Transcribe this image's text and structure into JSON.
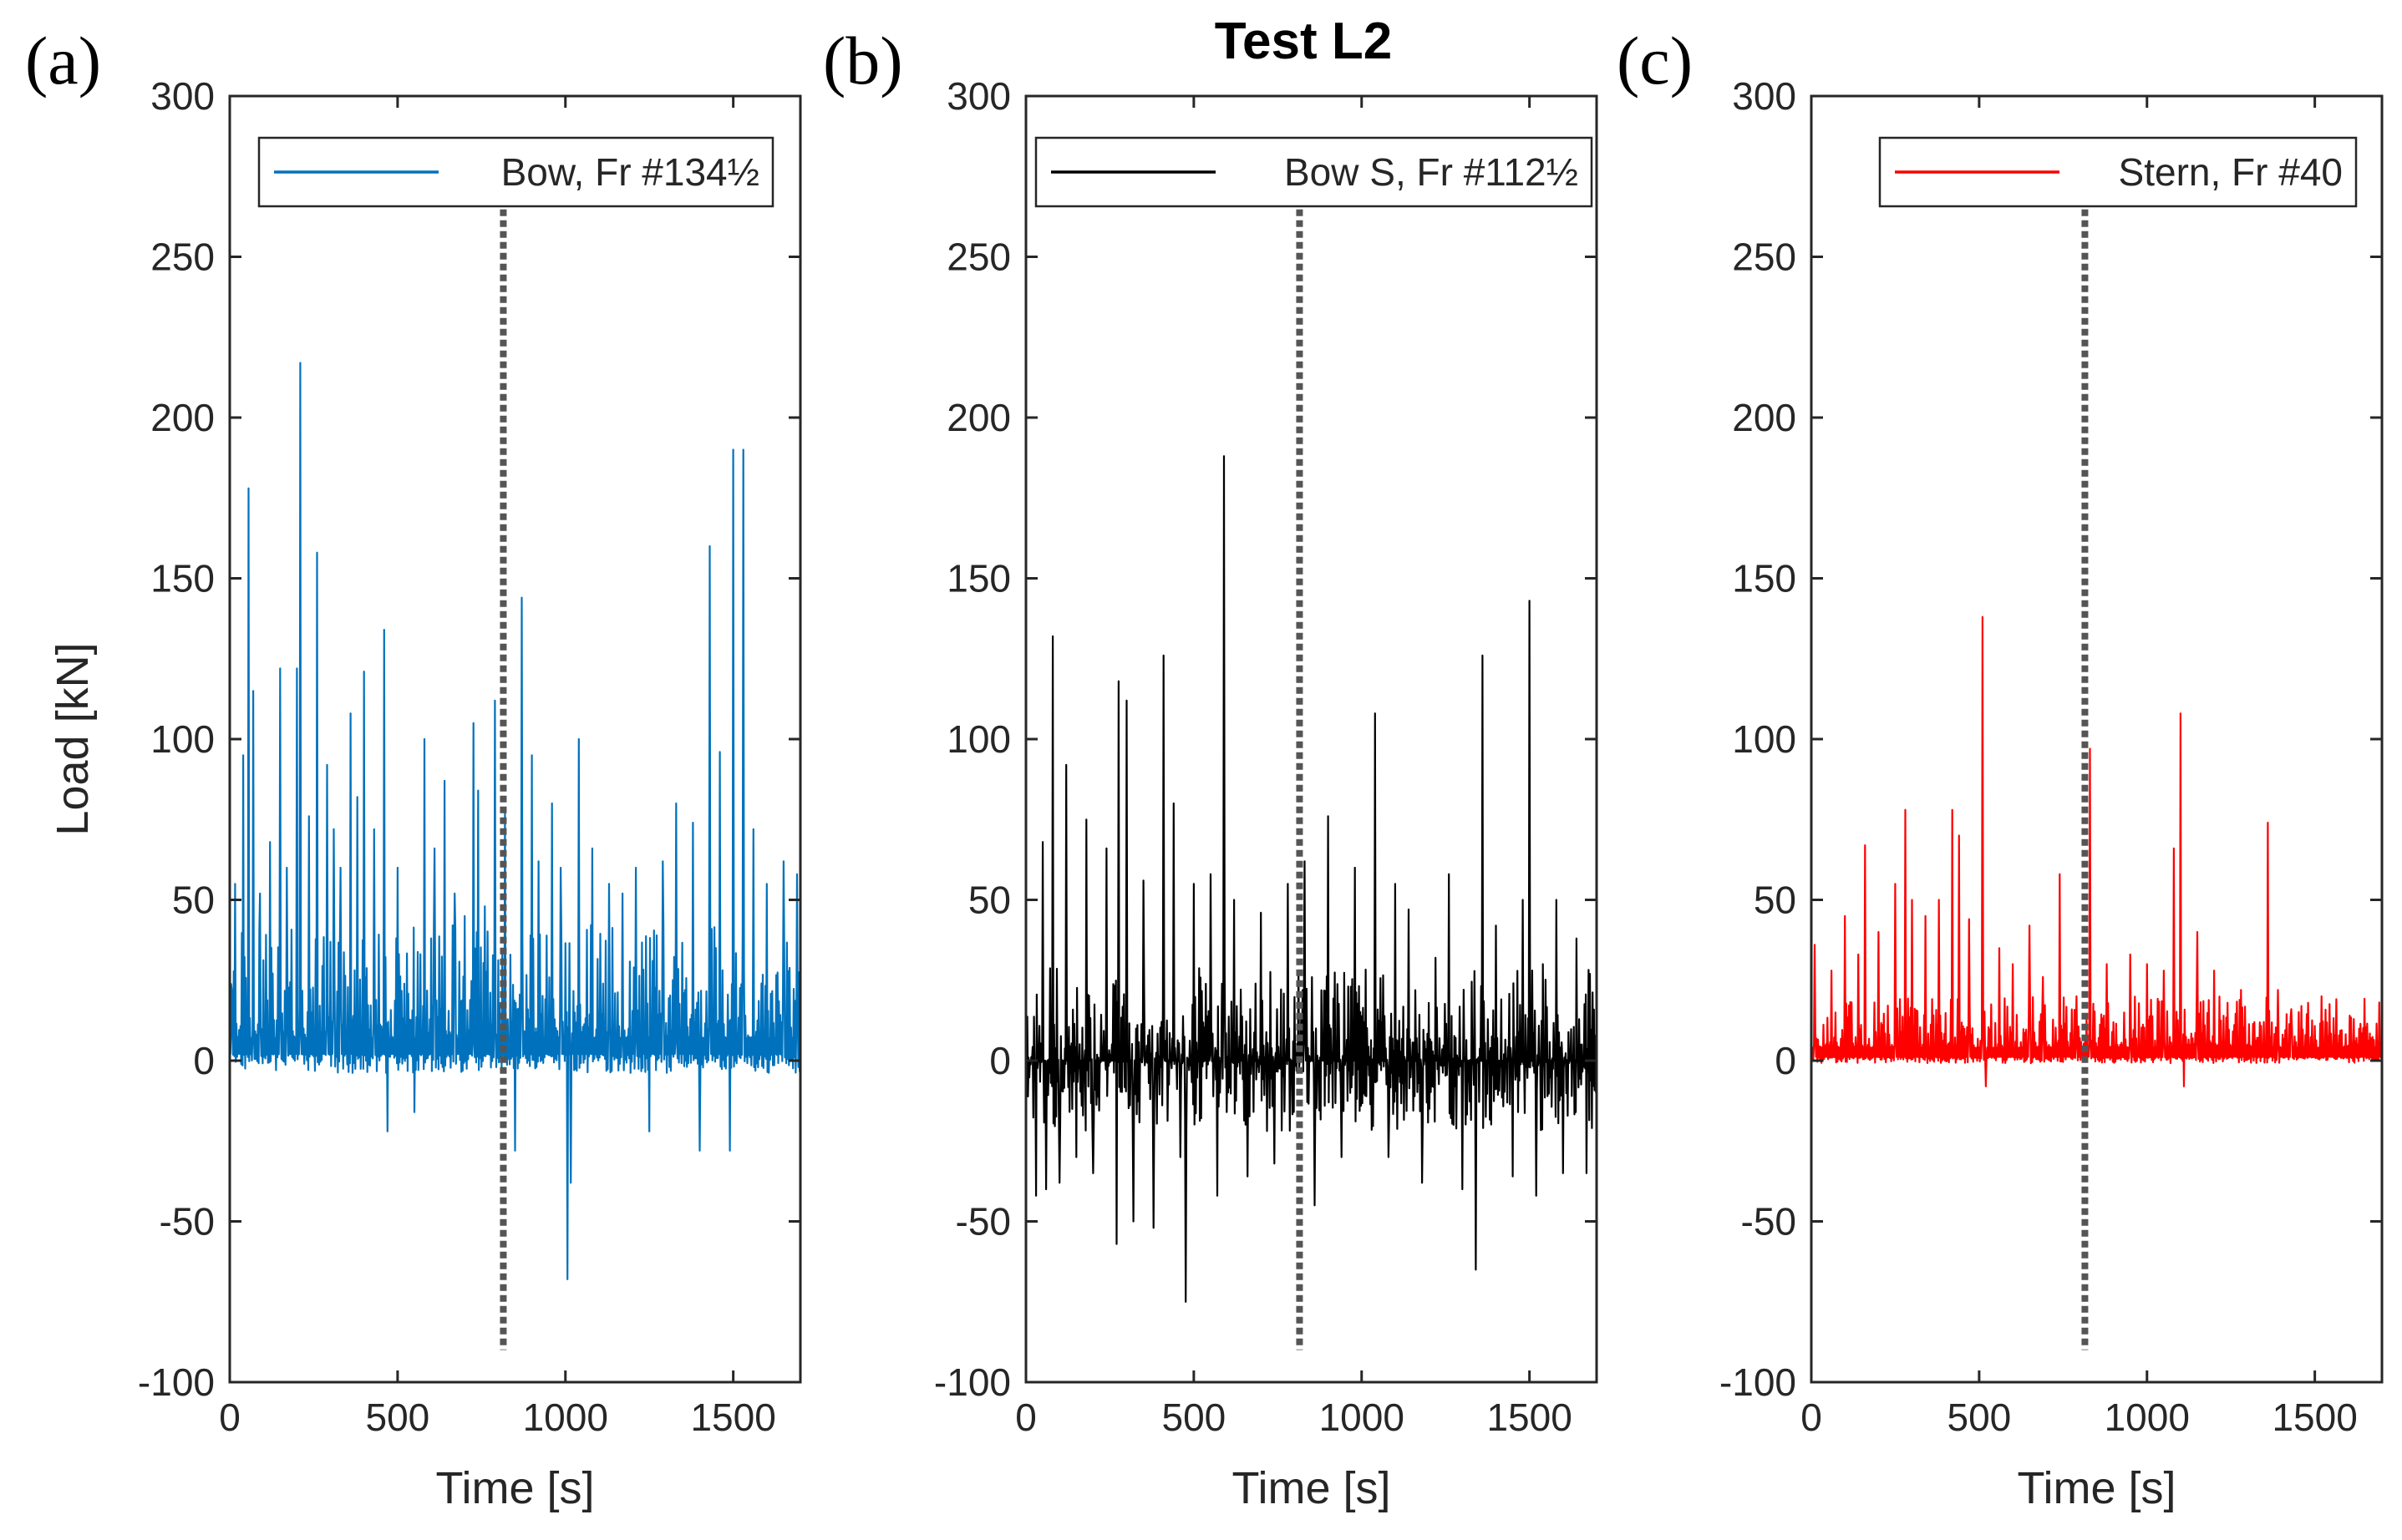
{
  "figure": {
    "title": "Test L2"
  },
  "chart_data": [
    {
      "type": "line",
      "panel_label": "(a)",
      "legend": "Bow, Fr #134½",
      "color": "#0072BD",
      "xlabel": "Time [s]",
      "ylabel": "Load [kN]",
      "xlim": [
        0,
        1700
      ],
      "ylim": [
        -100,
        300
      ],
      "xticks": [
        0,
        500,
        1000,
        1500
      ],
      "yticks": [
        -100,
        -50,
        0,
        50,
        100,
        150,
        200,
        250,
        300
      ],
      "vline_x": 815,
      "noise": {
        "base": 7,
        "amp": 22,
        "neg": 6,
        "seed": 11
      },
      "peaks": [
        [
          5,
          22
        ],
        [
          15,
          55
        ],
        [
          40,
          95
        ],
        [
          55,
          178
        ],
        [
          70,
          115
        ],
        [
          90,
          52
        ],
        [
          120,
          68
        ],
        [
          150,
          122
        ],
        [
          170,
          60
        ],
        [
          200,
          122
        ],
        [
          210,
          217
        ],
        [
          235,
          76
        ],
        [
          260,
          50
        ],
        [
          260,
          158
        ],
        [
          290,
          92
        ],
        [
          310,
          72
        ],
        [
          330,
          60
        ],
        [
          360,
          108
        ],
        [
          380,
          82
        ],
        [
          400,
          121
        ],
        [
          430,
          72
        ],
        [
          460,
          134
        ],
        [
          470,
          -22
        ],
        [
          500,
          60
        ],
        [
          550,
          -16
        ],
        [
          580,
          100
        ],
        [
          610,
          66
        ],
        [
          640,
          87
        ],
        [
          670,
          52
        ],
        [
          700,
          45
        ],
        [
          725,
          105
        ],
        [
          740,
          84
        ],
        [
          760,
          48
        ],
        [
          790,
          112
        ],
        [
          820,
          78
        ],
        [
          850,
          -28
        ],
        [
          870,
          144
        ],
        [
          900,
          95
        ],
        [
          920,
          62
        ],
        [
          960,
          80
        ],
        [
          985,
          60
        ],
        [
          1005,
          -68
        ],
        [
          1015,
          -38
        ],
        [
          1040,
          100
        ],
        [
          1080,
          66
        ],
        [
          1130,
          55
        ],
        [
          1170,
          52
        ],
        [
          1210,
          60
        ],
        [
          1250,
          -22
        ],
        [
          1290,
          62
        ],
        [
          1330,
          80
        ],
        [
          1380,
          74
        ],
        [
          1400,
          -28
        ],
        [
          1430,
          160
        ],
        [
          1460,
          96
        ],
        [
          1490,
          -28
        ],
        [
          1500,
          190
        ],
        [
          1530,
          190
        ],
        [
          1560,
          72
        ],
        [
          1600,
          55
        ],
        [
          1650,
          62
        ],
        [
          1690,
          58
        ]
      ]
    },
    {
      "type": "line",
      "panel_label": "(b)",
      "legend": "Bow S, Fr #112½",
      "color": "#000000",
      "xlabel": "Time [s]",
      "ylabel": "",
      "xlim": [
        0,
        1700
      ],
      "ylim": [
        -100,
        300
      ],
      "xticks": [
        0,
        500,
        1000,
        1500
      ],
      "yticks": [
        -100,
        -50,
        0,
        50,
        100,
        150,
        200,
        250,
        300
      ],
      "vline_x": 815,
      "noise": {
        "base": 0,
        "amp": 18,
        "neg": 22,
        "seed": 23
      },
      "peaks": [
        [
          30,
          -42
        ],
        [
          50,
          68
        ],
        [
          60,
          -40
        ],
        [
          80,
          132
        ],
        [
          100,
          -38
        ],
        [
          120,
          92
        ],
        [
          150,
          -30
        ],
        [
          180,
          75
        ],
        [
          200,
          -35
        ],
        [
          240,
          66
        ],
        [
          270,
          -57
        ],
        [
          275,
          118
        ],
        [
          300,
          112
        ],
        [
          320,
          -50
        ],
        [
          350,
          56
        ],
        [
          380,
          -52
        ],
        [
          410,
          126
        ],
        [
          440,
          80
        ],
        [
          460,
          -30
        ],
        [
          475,
          -75
        ],
        [
          500,
          55
        ],
        [
          550,
          58
        ],
        [
          570,
          -42
        ],
        [
          590,
          188
        ],
        [
          620,
          50
        ],
        [
          660,
          -36
        ],
        [
          700,
          46
        ],
        [
          740,
          -32
        ],
        [
          780,
          55
        ],
        [
          830,
          62
        ],
        [
          860,
          -45
        ],
        [
          900,
          76
        ],
        [
          940,
          -30
        ],
        [
          980,
          60
        ],
        [
          1040,
          108
        ],
        [
          1080,
          -30
        ],
        [
          1100,
          55
        ],
        [
          1140,
          47
        ],
        [
          1180,
          -38
        ],
        [
          1220,
          32
        ],
        [
          1260,
          58
        ],
        [
          1300,
          -40
        ],
        [
          1340,
          -65
        ],
        [
          1360,
          126
        ],
        [
          1400,
          42
        ],
        [
          1450,
          -36
        ],
        [
          1480,
          50
        ],
        [
          1500,
          143
        ],
        [
          1520,
          -42
        ],
        [
          1540,
          30
        ],
        [
          1580,
          50
        ],
        [
          1600,
          -35
        ],
        [
          1640,
          38
        ],
        [
          1670,
          -35
        ]
      ]
    },
    {
      "type": "line",
      "panel_label": "(c)",
      "legend": "Stern, Fr #40",
      "color": "#FF0000",
      "xlabel": "Time [s]",
      "ylabel": "",
      "xlim": [
        0,
        1700
      ],
      "ylim": [
        -100,
        300
      ],
      "xticks": [
        0,
        500,
        1000,
        1500
      ],
      "yticks": [
        -100,
        -50,
        0,
        50,
        100,
        150,
        200,
        250,
        300
      ],
      "vline_x": 815,
      "noise": {
        "base": 4,
        "amp": 10,
        "neg": 2,
        "seed": 37
      },
      "peaks": [
        [
          10,
          36
        ],
        [
          60,
          28
        ],
        [
          100,
          45
        ],
        [
          140,
          33
        ],
        [
          160,
          67
        ],
        [
          200,
          40
        ],
        [
          250,
          55
        ],
        [
          280,
          78
        ],
        [
          300,
          50
        ],
        [
          340,
          45
        ],
        [
          380,
          50
        ],
        [
          420,
          78
        ],
        [
          440,
          70
        ],
        [
          470,
          44
        ],
        [
          510,
          138
        ],
        [
          520,
          -8
        ],
        [
          560,
          35
        ],
        [
          600,
          30
        ],
        [
          650,
          42
        ],
        [
          690,
          26
        ],
        [
          740,
          58
        ],
        [
          790,
          20
        ],
        [
          830,
          97
        ],
        [
          880,
          30
        ],
        [
          950,
          33
        ],
        [
          1000,
          30
        ],
        [
          1050,
          28
        ],
        [
          1080,
          66
        ],
        [
          1100,
          108
        ],
        [
          1110,
          -8
        ],
        [
          1150,
          40
        ],
        [
          1200,
          28
        ],
        [
          1240,
          18
        ],
        [
          1280,
          22
        ],
        [
          1320,
          12
        ],
        [
          1360,
          74
        ],
        [
          1390,
          22
        ],
        [
          1430,
          16
        ],
        [
          1480,
          18
        ],
        [
          1520,
          20
        ],
        [
          1560,
          8
        ],
        [
          1620,
          6
        ],
        [
          1680,
          4
        ]
      ]
    }
  ]
}
